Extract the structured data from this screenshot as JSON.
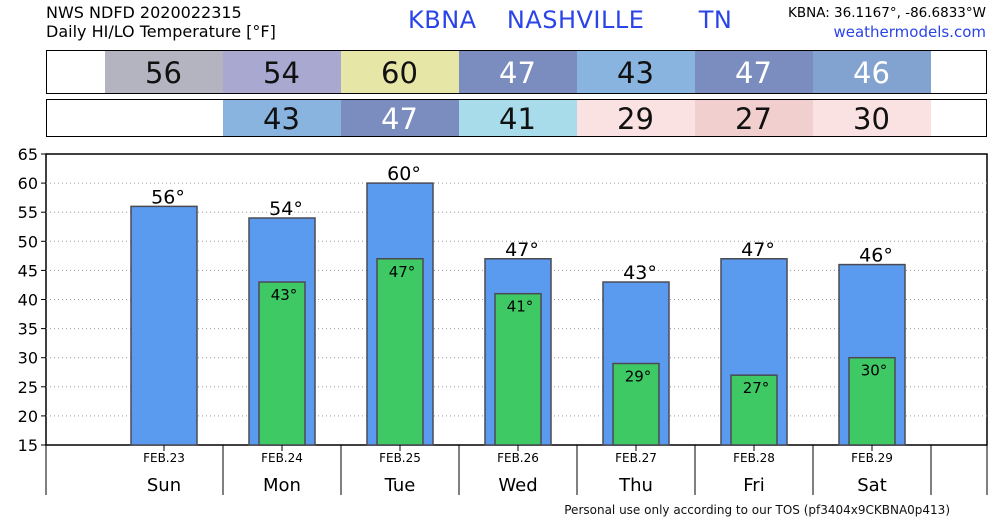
{
  "header": {
    "line1": "NWS NDFD 2020022315",
    "line2": "Daily HI/LO Temperature [°F]",
    "station": "KBNA",
    "city": "NASHVILLE",
    "state": "TN",
    "coords": "KBNA: 36.1167°, -86.6833°W",
    "site": "weathermodels.com"
  },
  "hi_strip": [
    {
      "value": "56",
      "bg": "#b4b4c0",
      "fg": "#111111"
    },
    {
      "value": "54",
      "bg": "#a8a8d0",
      "fg": "#111111"
    },
    {
      "value": "60",
      "bg": "#e6e6a6",
      "fg": "#111111"
    },
    {
      "value": "47",
      "bg": "#7b8cbf",
      "fg": "#ffffff"
    },
    {
      "value": "43",
      "bg": "#88b4df",
      "fg": "#111111"
    },
    {
      "value": "47",
      "bg": "#7b8cbf",
      "fg": "#ffffff"
    },
    {
      "value": "46",
      "bg": "#82a2cf",
      "fg": "#ffffff"
    }
  ],
  "lo_strip": [
    {
      "value": "43",
      "bg": "#88b4df",
      "fg": "#111111"
    },
    {
      "value": "47",
      "bg": "#7b8cbf",
      "fg": "#ffffff"
    },
    {
      "value": "41",
      "bg": "#a8dcea",
      "fg": "#111111"
    },
    {
      "value": "29",
      "bg": "#fae2e2",
      "fg": "#111111"
    },
    {
      "value": "27",
      "bg": "#f2cfcf",
      "fg": "#111111"
    },
    {
      "value": "30",
      "bg": "#fae2e2",
      "fg": "#111111"
    }
  ],
  "chart_data": {
    "type": "bar",
    "dates": [
      "FEB.23",
      "FEB.24",
      "FEB.25",
      "FEB.26",
      "FEB.27",
      "FEB.28",
      "FEB.29"
    ],
    "days": [
      "Sun",
      "Mon",
      "Tue",
      "Wed",
      "Thu",
      "Fri",
      "Sat"
    ],
    "series": [
      {
        "values": [
          56,
          54,
          60,
          47,
          43,
          47,
          46
        ],
        "color": "#5b9bef",
        "labels": [
          "56°",
          "54°",
          "60°",
          "47°",
          "43°",
          "47°",
          "46°"
        ]
      },
      {
        "values": [
          null,
          43,
          47,
          41,
          29,
          27,
          30
        ],
        "color": "#3ec964",
        "labels": [
          "",
          "43°",
          "47°",
          "41°",
          "29°",
          "27°",
          "30°"
        ]
      }
    ],
    "yticks": [
      15,
      20,
      25,
      30,
      35,
      40,
      45,
      50,
      55,
      60,
      65
    ],
    "ylim": [
      15,
      65
    ],
    "grid": true,
    "xlabel": "",
    "ylabel": ""
  },
  "footer": "Personal use only according to our TOS (pf3404x9CKBNA0p413)"
}
